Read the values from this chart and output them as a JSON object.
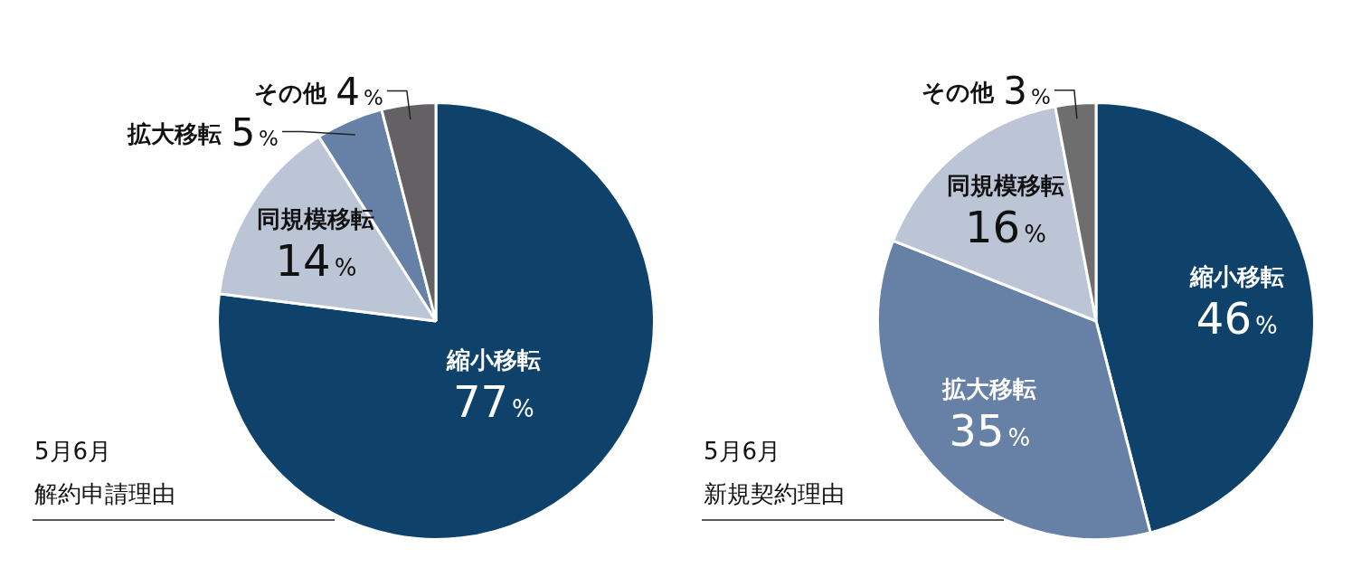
{
  "chart_data": [
    {
      "type": "pie",
      "title": "5月6月",
      "subtitle": "解約申請理由",
      "legend": false,
      "categories": [
        "縮小移転",
        "同規模移転",
        "拡大移転",
        "その他"
      ],
      "values": [
        77,
        14,
        5,
        4
      ],
      "colors": [
        "#0e426b",
        "#bcc5d6",
        "#6780a6",
        "#636163"
      ],
      "value_labels": [
        "77%",
        "14%",
        "5%",
        "4%"
      ]
    },
    {
      "type": "pie",
      "title": "5月6月",
      "subtitle": "新規契約理由",
      "legend": false,
      "categories": [
        "縮小移転",
        "拡大移転",
        "同規模移転",
        "その他"
      ],
      "values": [
        46,
        35,
        16,
        3
      ],
      "colors": [
        "#0e426b",
        "#6780a6",
        "#bcc5d6",
        "#6e6e6e"
      ],
      "value_labels": [
        "46%",
        "35%",
        "16%",
        "3%"
      ]
    }
  ]
}
